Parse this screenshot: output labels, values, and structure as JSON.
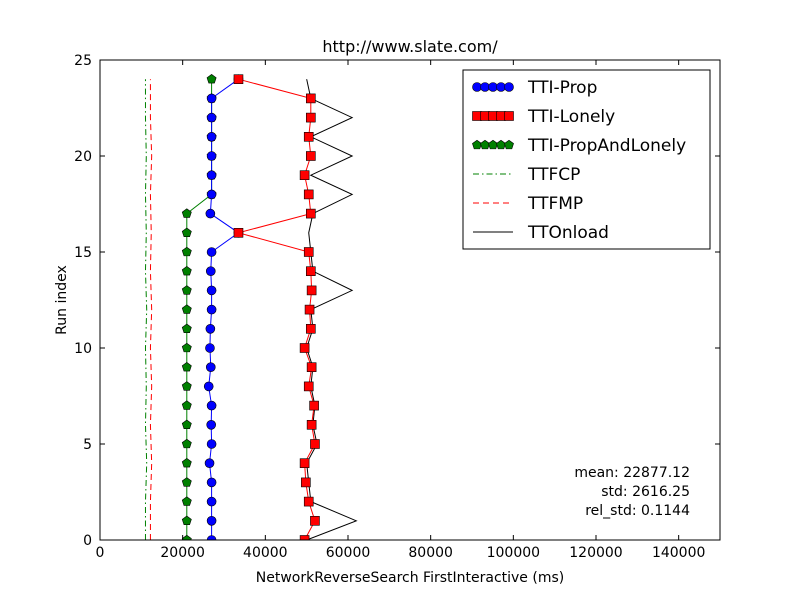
{
  "chart_data": {
    "type": "line",
    "title": "http://www.slate.com/",
    "xlabel": "NetworkReverseSearch FirstInteractive (ms)",
    "ylabel": "Run index",
    "xlim": [
      0,
      150000
    ],
    "ylim": [
      0,
      25
    ],
    "xticks": [
      0,
      20000,
      40000,
      60000,
      80000,
      100000,
      120000,
      140000
    ],
    "yticks": [
      0,
      5,
      10,
      15,
      20,
      25
    ],
    "legend_position": "top-right",
    "stats": [
      "mean: 22877.12",
      "std: 2616.25",
      "rel_std: 0.1144"
    ],
    "series": [
      {
        "name": "TTI-Prop",
        "color": "#0000ff",
        "marker": "circle",
        "linestyle": "solid",
        "points": [
          [
            27000,
            0
          ],
          [
            27000,
            1
          ],
          [
            27000,
            2
          ],
          [
            27000,
            3
          ],
          [
            26500,
            4
          ],
          [
            27000,
            5
          ],
          [
            26900,
            6
          ],
          [
            27000,
            7
          ],
          [
            26300,
            8
          ],
          [
            26800,
            9
          ],
          [
            26600,
            10
          ],
          [
            26700,
            11
          ],
          [
            27000,
            12
          ],
          [
            27000,
            13
          ],
          [
            26800,
            14
          ],
          [
            27000,
            15
          ],
          [
            33500,
            16
          ],
          [
            26700,
            17
          ],
          [
            27000,
            18
          ],
          [
            27000,
            19
          ],
          [
            27000,
            20
          ],
          [
            27000,
            21
          ],
          [
            27000,
            22
          ],
          [
            27000,
            23
          ],
          [
            33500,
            24
          ]
        ]
      },
      {
        "name": "TTI-Lonely",
        "color": "#ff0000",
        "marker": "square",
        "linestyle": "solid",
        "points": [
          [
            49500,
            0
          ],
          [
            52000,
            1
          ],
          [
            50500,
            2
          ],
          [
            49800,
            3
          ],
          [
            49500,
            4
          ],
          [
            52000,
            5
          ],
          [
            51200,
            6
          ],
          [
            51800,
            7
          ],
          [
            50500,
            8
          ],
          [
            51200,
            9
          ],
          [
            49500,
            10
          ],
          [
            51000,
            11
          ],
          [
            50700,
            12
          ],
          [
            51200,
            13
          ],
          [
            51000,
            14
          ],
          [
            50500,
            15
          ],
          [
            33500,
            16
          ],
          [
            51000,
            17
          ],
          [
            50500,
            18
          ],
          [
            49500,
            19
          ],
          [
            51000,
            20
          ],
          [
            50500,
            21
          ],
          [
            51000,
            22
          ],
          [
            51000,
            23
          ],
          [
            33500,
            24
          ]
        ]
      },
      {
        "name": "TTI-PropAndLonely",
        "color": "#008000",
        "marker": "pentagon",
        "linestyle": "solid",
        "points": [
          [
            21000,
            0
          ],
          [
            21000,
            1
          ],
          [
            21000,
            2
          ],
          [
            21000,
            3
          ],
          [
            21000,
            4
          ],
          [
            21000,
            5
          ],
          [
            21000,
            6
          ],
          [
            21000,
            7
          ],
          [
            21000,
            8
          ],
          [
            21000,
            9
          ],
          [
            21000,
            10
          ],
          [
            21000,
            11
          ],
          [
            21000,
            12
          ],
          [
            21000,
            13
          ],
          [
            21000,
            14
          ],
          [
            21000,
            15
          ],
          [
            21000,
            16
          ],
          [
            21000,
            17
          ],
          [
            27000,
            18
          ],
          [
            27000,
            19
          ],
          [
            27000,
            20
          ],
          [
            27000,
            21
          ],
          [
            27000,
            22
          ],
          [
            27000,
            23
          ],
          [
            27000,
            24
          ]
        ]
      },
      {
        "name": "TTFCP",
        "color": "#008000",
        "marker": "none",
        "linestyle": "dashdot",
        "points": [
          [
            11000,
            0
          ],
          [
            11000,
            2
          ],
          [
            11300,
            4
          ],
          [
            11000,
            6
          ],
          [
            11200,
            8
          ],
          [
            11000,
            10
          ],
          [
            11300,
            12
          ],
          [
            11000,
            14
          ],
          [
            11200,
            16
          ],
          [
            11000,
            18
          ],
          [
            11200,
            20
          ],
          [
            11000,
            22
          ],
          [
            11000,
            24
          ]
        ]
      },
      {
        "name": "TTFMP",
        "color": "#ff0000",
        "marker": "none",
        "linestyle": "dashed",
        "points": [
          [
            12200,
            0
          ],
          [
            12200,
            2
          ],
          [
            12500,
            4
          ],
          [
            12200,
            6
          ],
          [
            12500,
            8
          ],
          [
            12200,
            10
          ],
          [
            12500,
            12
          ],
          [
            12200,
            14
          ],
          [
            12400,
            16
          ],
          [
            12200,
            18
          ],
          [
            12500,
            20
          ],
          [
            12200,
            22
          ],
          [
            12200,
            24
          ]
        ]
      },
      {
        "name": "TTOnload",
        "color": "#000000",
        "marker": "none",
        "linestyle": "solid",
        "points": [
          [
            50000,
            0
          ],
          [
            62000,
            1
          ],
          [
            51000,
            2
          ],
          [
            50500,
            3
          ],
          [
            50000,
            4
          ],
          [
            52500,
            5
          ],
          [
            51500,
            6
          ],
          [
            52000,
            7
          ],
          [
            51000,
            8
          ],
          [
            51500,
            9
          ],
          [
            50000,
            10
          ],
          [
            51500,
            11
          ],
          [
            51000,
            12
          ],
          [
            61000,
            13
          ],
          [
            51500,
            14
          ],
          [
            51000,
            15
          ],
          [
            50500,
            16
          ],
          [
            51500,
            17
          ],
          [
            61000,
            18
          ],
          [
            51000,
            19
          ],
          [
            61000,
            20
          ],
          [
            51000,
            21
          ],
          [
            61000,
            22
          ],
          [
            51000,
            23
          ],
          [
            50000,
            24
          ]
        ]
      }
    ]
  }
}
